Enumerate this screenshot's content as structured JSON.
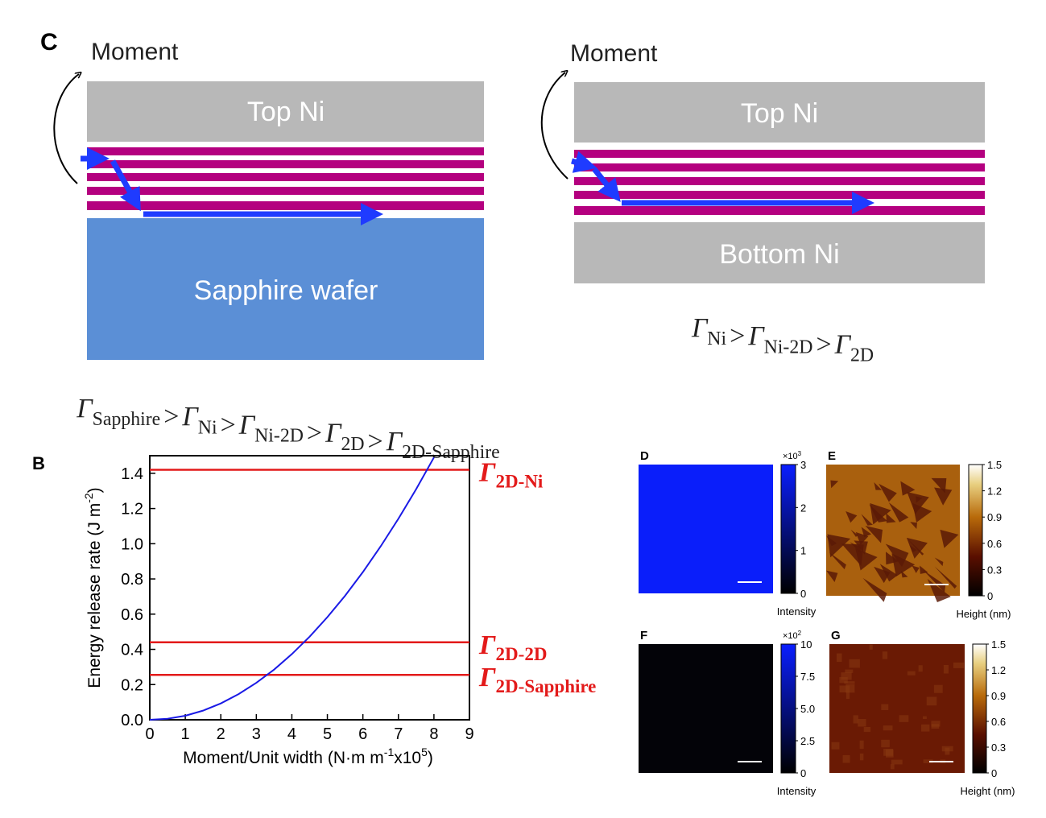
{
  "panel_c": {
    "label": "C",
    "formula_symbol": "Γ",
    "relation": ">",
    "left": {
      "moment": "Moment",
      "top": "Top Ni",
      "bottom": "Sapphire wafer",
      "formula": [
        "Sapphire",
        "Ni",
        "Ni-2D",
        "2D",
        "2D-Sapphire"
      ]
    },
    "right": {
      "moment": "Moment",
      "top": "Top Ni",
      "bottom": "Bottom Ni",
      "formula": [
        "Ni",
        "Ni-2D",
        "2D"
      ]
    }
  },
  "chart_data": {
    "type": "line",
    "panel_label": "B",
    "ylabel": {
      "text": "Energy release rate (J m",
      "sup": "-2",
      "tail": ")"
    },
    "xlabel": {
      "text": "Moment/Unit width (N·m m",
      "sup1": "-1",
      "mid": "x10",
      "sup2": "5",
      "tail": ")"
    },
    "x": [
      0,
      0.5,
      1,
      1.5,
      2,
      2.5,
      3,
      3.5,
      4,
      4.5,
      5,
      5.5,
      6,
      6.5,
      7,
      7.5,
      8
    ],
    "series": [
      {
        "color": "#1a1ae6",
        "values": [
          0,
          0.006,
          0.023,
          0.052,
          0.093,
          0.146,
          0.21,
          0.285,
          0.373,
          0.472,
          0.583,
          0.705,
          0.839,
          0.985,
          1.142,
          1.31,
          1.49
        ]
      }
    ],
    "xlim": [
      0,
      9
    ],
    "xticks": [
      0,
      1,
      2,
      3,
      4,
      5,
      6,
      7,
      8,
      9
    ],
    "ylim": [
      0,
      1.5
    ],
    "yticks": [
      {
        "value": 0,
        "label": "0.0"
      },
      {
        "value": 0.2,
        "label": "0.2"
      },
      {
        "value": 0.4,
        "label": "0.4"
      },
      {
        "value": 0.6,
        "label": "0.6"
      },
      {
        "value": 0.8,
        "label": "0.8"
      },
      {
        "value": 1,
        "label": "1.0"
      },
      {
        "value": 1.2,
        "label": "1.2"
      },
      {
        "value": 1.4,
        "label": "1.4"
      }
    ],
    "hline_color": "#e31a1a",
    "hlines": [
      {
        "value": 1.42,
        "symbol": "Γ",
        "subscript": "2D-Ni"
      },
      {
        "value": 0.44,
        "symbol": "Γ",
        "subscript": "2D-2D"
      },
      {
        "value": 0.255,
        "symbol": "Γ",
        "subscript": "2D-Sapphire"
      }
    ]
  },
  "maps": [
    {
      "label": "D",
      "exponent": {
        "base": "×10",
        "power": "3"
      },
      "lim": [
        0,
        3
      ],
      "ticks": [
        0,
        1,
        2,
        3
      ],
      "cbar_label": "Intensity"
    },
    {
      "label": "E",
      "lim": [
        0,
        1.5
      ],
      "ticks": [
        0,
        0.3,
        0.6,
        0.9,
        1.2,
        1.5
      ],
      "cbar_label": "Height (nm)"
    },
    {
      "label": "F",
      "exponent": {
        "base": "×10",
        "power": "2"
      },
      "lim": [
        0,
        10
      ],
      "ticks": [
        0,
        {
          "value": 2.5,
          "label": "2.5"
        },
        {
          "value": 5,
          "label": "5.0"
        },
        {
          "value": 7.5,
          "label": "7.5"
        },
        10
      ],
      "cbar_label": "Intensity"
    },
    {
      "label": "G",
      "lim": [
        0,
        1.5
      ],
      "ticks": [
        0,
        0.3,
        0.6,
        0.9,
        1.2,
        1.5
      ],
      "cbar_label": "Height (nm)"
    }
  ]
}
